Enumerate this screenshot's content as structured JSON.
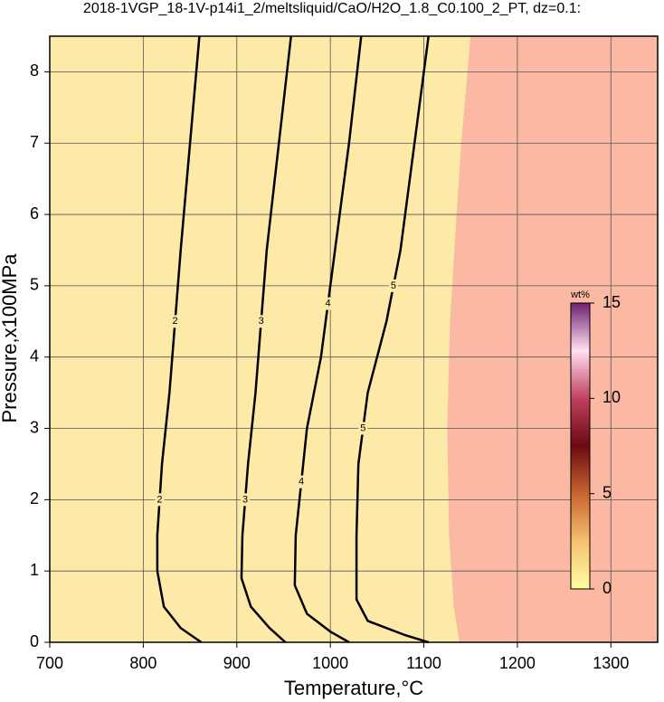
{
  "chart_data": {
    "type": "contour",
    "title": "2018-1VGP_18-1V-p14i1_2/meltsliquid/CaO/H2O_1.8_C0.100_2_PT, dz=0.1:",
    "xlabel": "Temperature,°C",
    "ylabel": "Pressure,x100MPa",
    "xlim": [
      700,
      1350
    ],
    "ylim": [
      0,
      8.5
    ],
    "xticks": [
      700,
      800,
      900,
      1000,
      1100,
      1200,
      1300
    ],
    "yticks": [
      0,
      1,
      2,
      3,
      4,
      5,
      6,
      7,
      8
    ],
    "grid": true,
    "fill_color": "#fde9a8",
    "region": {
      "color": "#fbb8a2",
      "x": [
        1150,
        1140,
        1135,
        1128,
        1125,
        1127,
        1132,
        1138
      ],
      "y": [
        8.5,
        7,
        6,
        4.5,
        3,
        1.5,
        0.5,
        0
      ]
    },
    "contours": [
      {
        "level": 2,
        "label": "2",
        "x": [
          860,
          850,
          840,
          828,
          820,
          815,
          815,
          822,
          840,
          862
        ],
        "y": [
          8.5,
          7,
          5.5,
          3.5,
          2.5,
          1.5,
          1,
          0.5,
          0.2,
          0
        ]
      },
      {
        "level": 3,
        "label": "3",
        "x": [
          958,
          945,
          932,
          920,
          912,
          906,
          905,
          915,
          935,
          952
        ],
        "y": [
          8.5,
          7,
          5.5,
          3.5,
          2.5,
          1.5,
          0.9,
          0.5,
          0.2,
          0
        ]
      },
      {
        "level": 4,
        "label": "4",
        "x": [
          1033,
          1020,
          1005,
          990,
          975,
          963,
          962,
          975,
          1000,
          1020
        ],
        "y": [
          8.5,
          7,
          5.5,
          4,
          3,
          1.5,
          0.8,
          0.4,
          0.15,
          0
        ]
      },
      {
        "level": 5,
        "label": "5",
        "x": [
          1105,
          1090,
          1075,
          1060,
          1040,
          1030,
          1028,
          1028,
          1040,
          1080,
          1105
        ],
        "y": [
          8.5,
          7,
          5.5,
          4.5,
          3.5,
          2.5,
          1.5,
          0.6,
          0.3,
          0.1,
          0
        ]
      }
    ],
    "colorbar": {
      "label": "wt%",
      "lim": [
        0,
        15
      ],
      "ticks": [
        0,
        5,
        10,
        15
      ],
      "colors": [
        "#ffffa0",
        "#f5c070",
        "#c86430",
        "#6a0a10",
        "#c04060",
        "#ffe0f0",
        "#702070"
      ]
    }
  }
}
